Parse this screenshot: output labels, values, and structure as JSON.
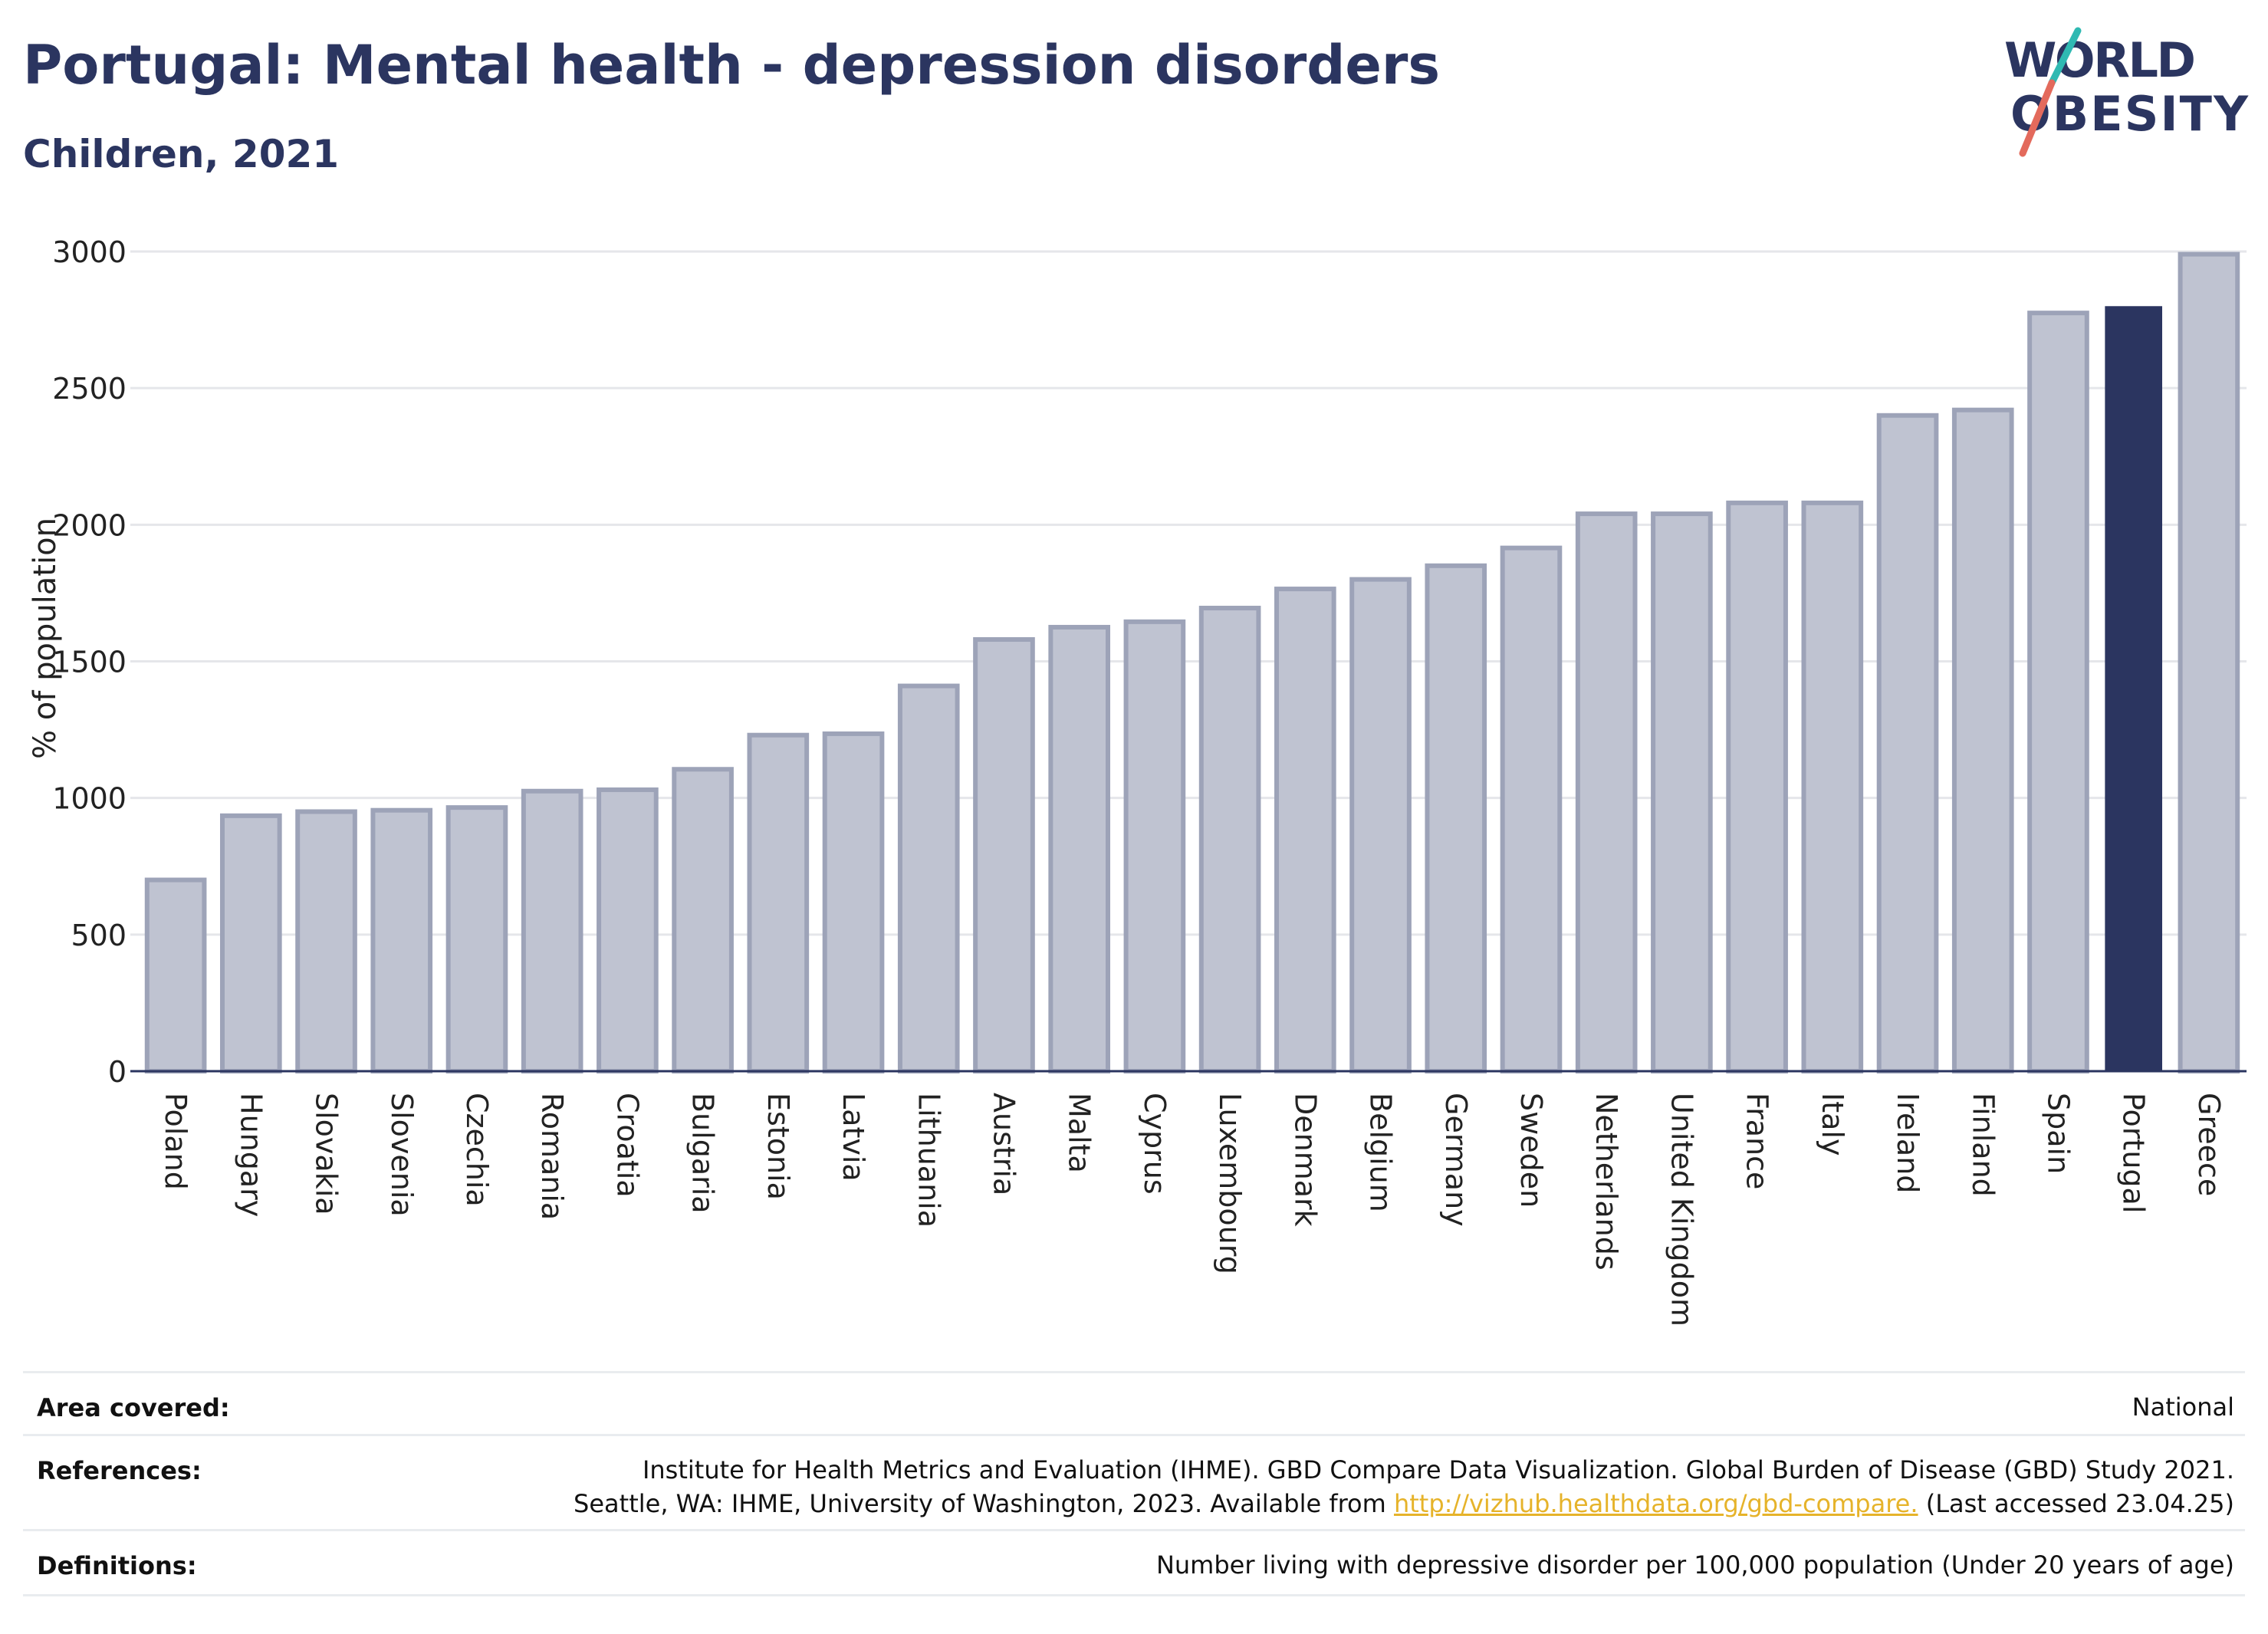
{
  "header": {
    "title": "Portugal: Mental health - depression disorders",
    "subtitle": "Children, 2021"
  },
  "logo": {
    "line1": "WORLD",
    "line2": "OBESITY"
  },
  "colors": {
    "primary": "#2b3560",
    "bar_faded": "#bfc3d1",
    "bar_faded_border": "#9da3b8",
    "grid": "#e5e6ea",
    "logo_teal": "#2fb9b2",
    "logo_coral": "#e36a5c",
    "link": "#e6b32a"
  },
  "chart_data": {
    "type": "bar",
    "ylabel": "% of population",
    "ylim": [
      0,
      3000
    ],
    "yticks": [
      0,
      500,
      1000,
      1500,
      2000,
      2500,
      3000
    ],
    "grid": true,
    "highlight": "Portugal",
    "categories": [
      "Poland",
      "Hungary",
      "Slovakia",
      "Slovenia",
      "Czechia",
      "Romania",
      "Croatia",
      "Bulgaria",
      "Estonia",
      "Latvia",
      "Lithuania",
      "Austria",
      "Malta",
      "Cyprus",
      "Luxembourg",
      "Denmark",
      "Belgium",
      "Germany",
      "Sweden",
      "Netherlands",
      "United Kingdom",
      "France",
      "Italy",
      "Ireland",
      "Finland",
      "Spain",
      "Portugal",
      "Greece"
    ],
    "values": [
      700,
      935,
      950,
      955,
      965,
      1025,
      1030,
      1105,
      1230,
      1235,
      1410,
      1580,
      1625,
      1645,
      1695,
      1765,
      1800,
      1850,
      1915,
      2040,
      2040,
      2080,
      2080,
      2400,
      2420,
      2775,
      2800,
      2990
    ]
  },
  "footer": {
    "area_label": "Area covered:",
    "area_value": "National",
    "references_label": "References:",
    "references_line1": "Institute for Health Metrics and Evaluation (IHME). GBD Compare Data Visualization. Global Burden of Disease (GBD) Study 2021.",
    "references_line2_pre": "Seattle, WA: IHME, University of Washington, 2023. Available from",
    "references_link": "http://vizhub.healthdata.org/gbd-compare.",
    "references_line2_post": "(Last accessed 23.04.25)",
    "definitions_label": "Definitions:",
    "definitions_value": "Number living with depressive disorder per 100,000 population (Under 20 years of age)"
  }
}
